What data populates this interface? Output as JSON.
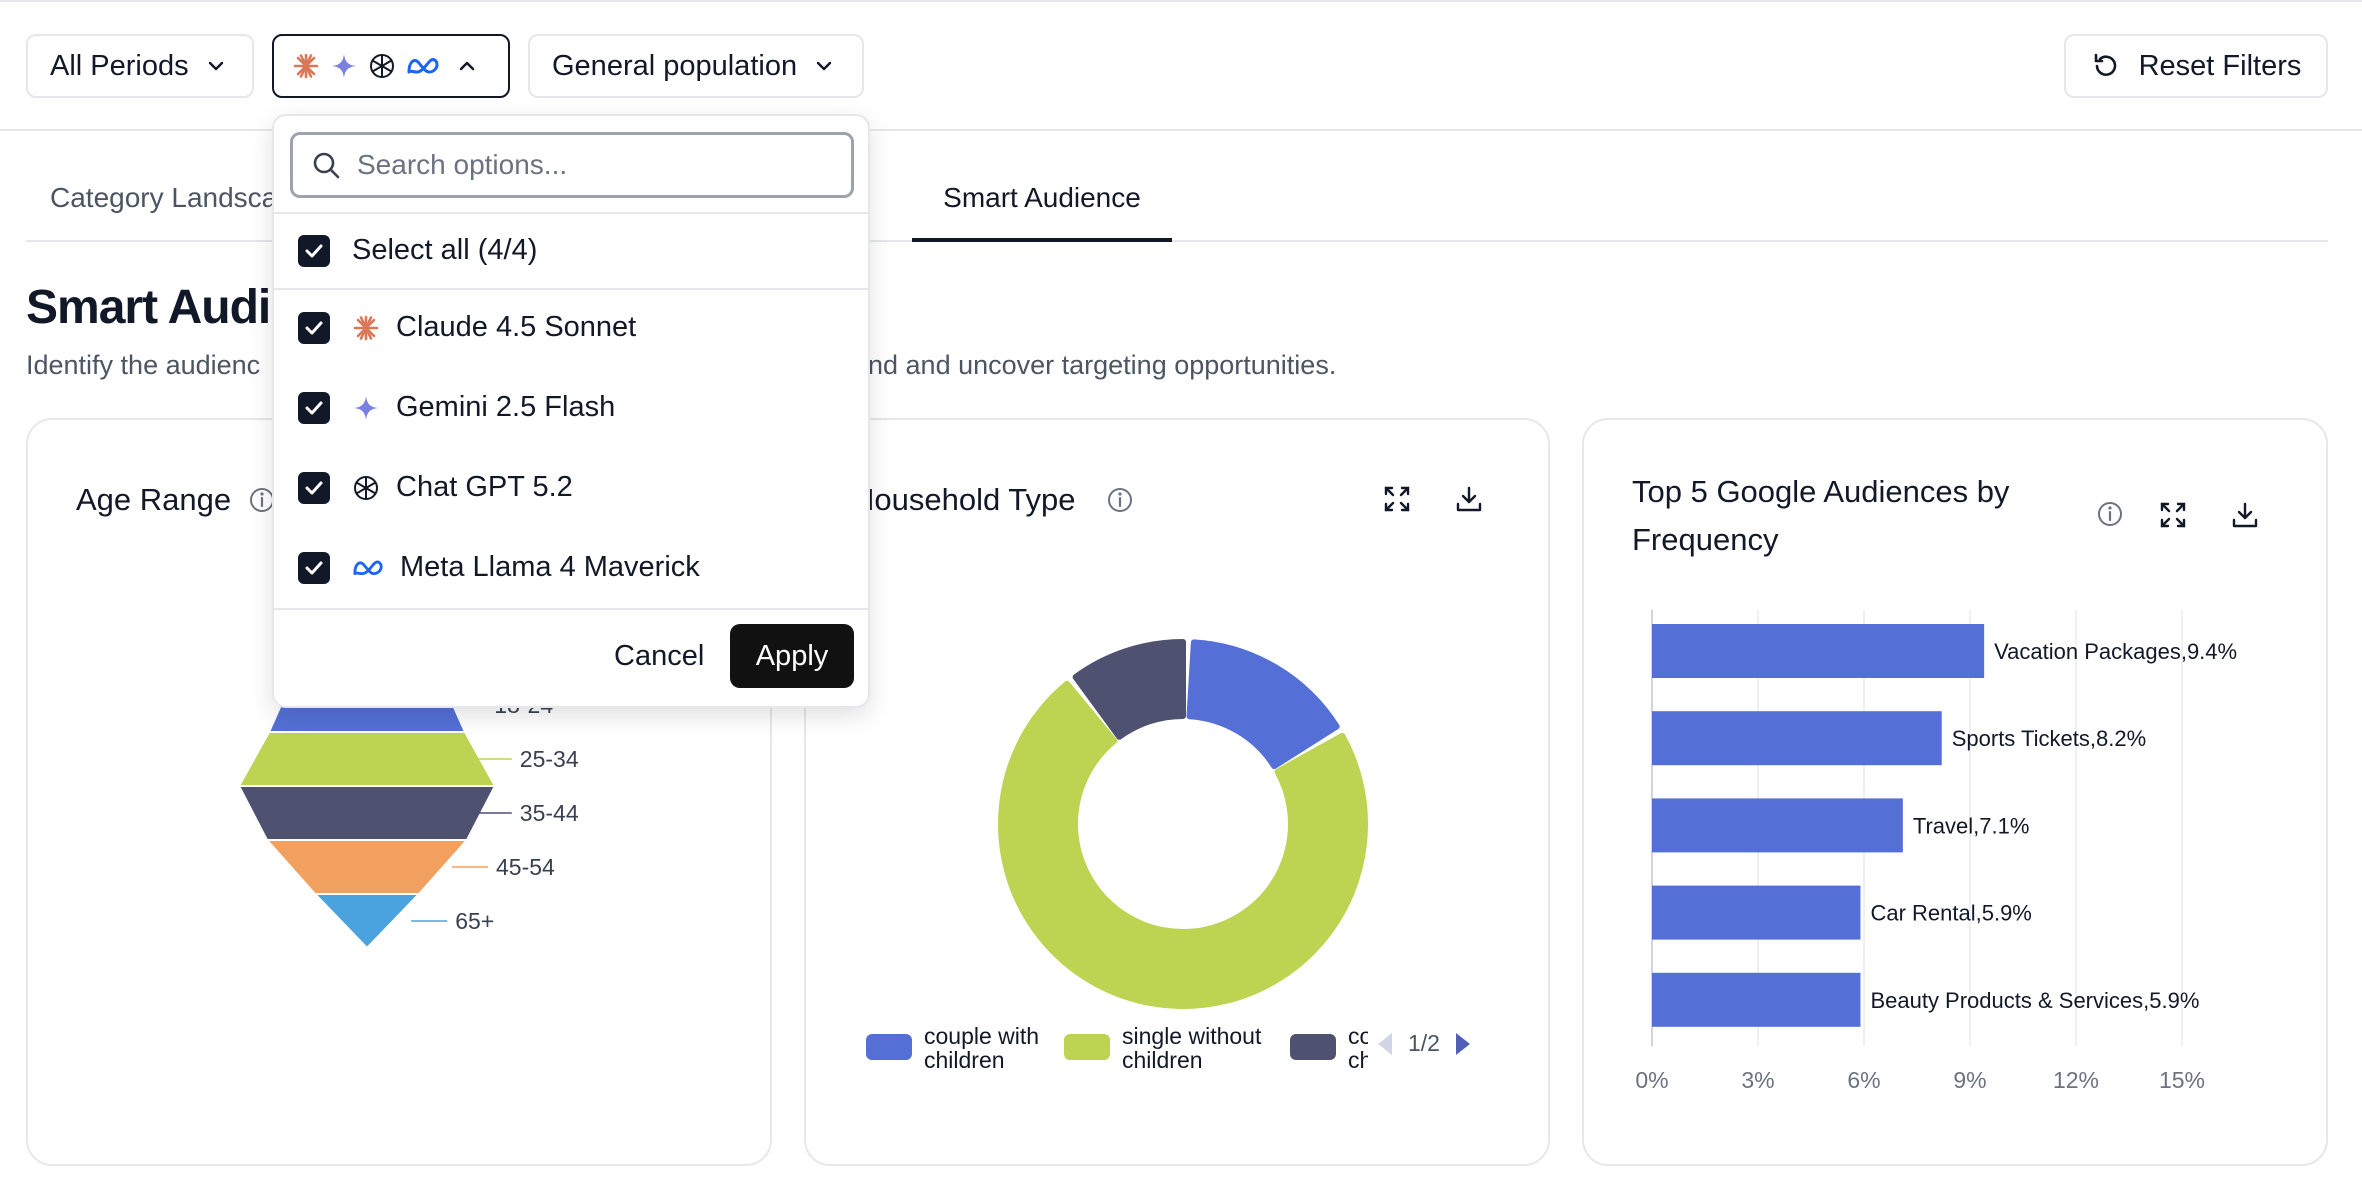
{
  "filters": {
    "periods_label": "All Periods",
    "population_label": "General population",
    "reset_label": "Reset Filters"
  },
  "tabs": [
    {
      "label": "Category Landscape"
    },
    {
      "label": "Smart Audience"
    }
  ],
  "section": {
    "title": "Smart Audience",
    "description": "Identify the audience segments most associated with your brand and uncover targeting opportunities.",
    "description_visible_head": "Identify the audienc",
    "description_visible_tail": "nd and uncover targeting opportunities."
  },
  "dropdown": {
    "search_placeholder": "Search options...",
    "select_all": "Select all (4/4)",
    "options": [
      {
        "label": "Claude 4.5 Sonnet",
        "icon": "claude-icon",
        "color": "#d97757"
      },
      {
        "label": "Gemini 2.5 Flash",
        "icon": "gemini-icon",
        "color": "#7b7fe0"
      },
      {
        "label": "Chat GPT 5.2",
        "icon": "openai-icon",
        "color": "#111827"
      },
      {
        "label": "Meta Llama 4 Maverick",
        "icon": "meta-icon",
        "color": "#1d64f2"
      }
    ],
    "cancel_label": "Cancel",
    "apply_label": "Apply"
  },
  "cards": {
    "age": {
      "title": "Age Range"
    },
    "household": {
      "title": "Household Type",
      "visible_title": "Household Type"
    },
    "google": {
      "title_line1": "Top 5 Google Audiences by",
      "title_line2": "Frequency"
    }
  },
  "pager": {
    "label": "1/2"
  },
  "chart_data": [
    {
      "type": "funnel",
      "title": "Age Range",
      "categories": [
        "18-24",
        "25-34",
        "35-44",
        "45-54",
        "65+"
      ],
      "colors": [
        "#5470d6",
        "#bcd452",
        "#4f5170",
        "#f2a05f",
        "#4aa3df"
      ]
    },
    {
      "type": "pie",
      "title": "Household Type",
      "donut": true,
      "slices": [
        {
          "name": "couple with children",
          "value": 16,
          "color": "#5470d6"
        },
        {
          "name": "single without children",
          "value": 73,
          "color": "#bcd452"
        },
        {
          "name": "couple without children",
          "value": 11,
          "color": "#4f5170"
        }
      ],
      "legend_visible": [
        {
          "line1": "couple with",
          "line2": "children",
          "color": "#5470d6"
        },
        {
          "line1": "single without",
          "line2": "children",
          "color": "#bcd452"
        },
        {
          "line1": "co",
          "line2": "ch",
          "color": "#4f5170"
        }
      ]
    },
    {
      "type": "bar",
      "orientation": "horizontal",
      "title": "Top 5 Google Audiences by Frequency",
      "categories": [
        "Vacation Packages",
        "Sports Tickets",
        "Travel",
        "Car Rental",
        "Beauty Products & Services"
      ],
      "values": [
        9.4,
        8.2,
        7.1,
        5.9,
        5.9
      ],
      "xlim": [
        0,
        15
      ],
      "ticks": [
        "0%",
        "3%",
        "6%",
        "9%",
        "12%",
        "15%"
      ],
      "color": "#5470d6",
      "grid": true
    }
  ]
}
